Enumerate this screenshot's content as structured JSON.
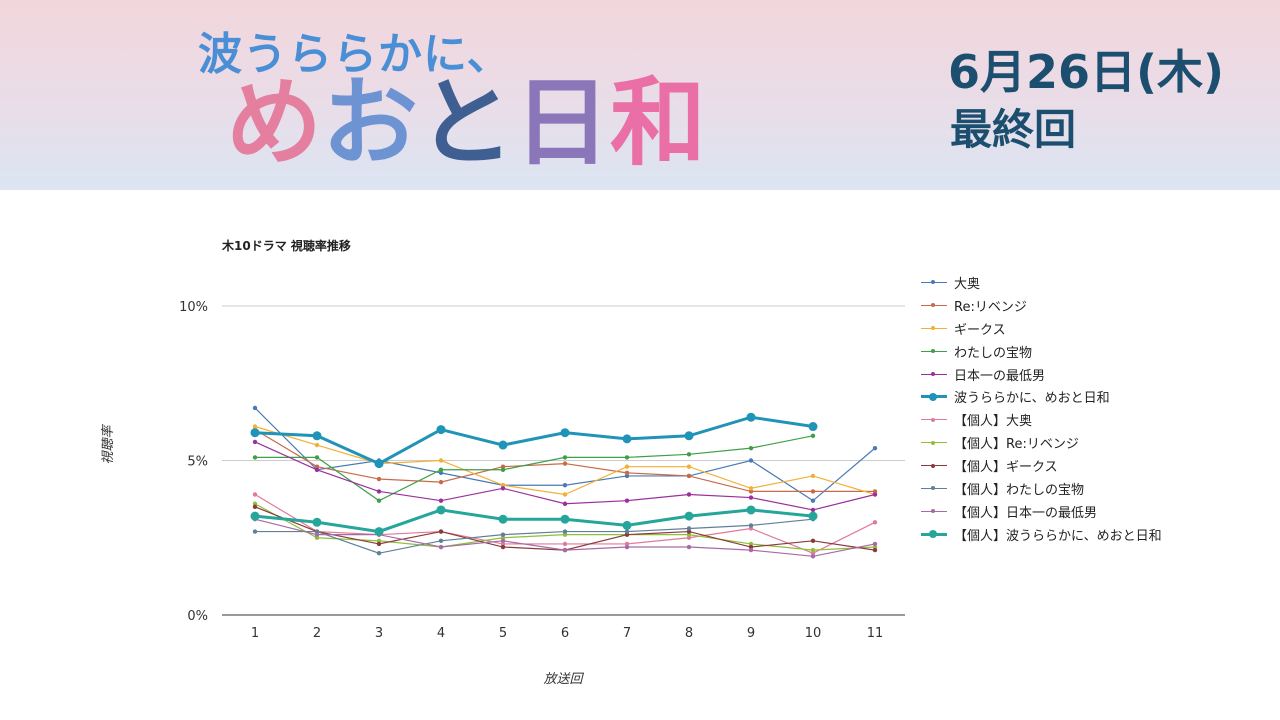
{
  "header": {
    "title_top": "波うららかに、",
    "title_main": [
      "め",
      "お",
      "と",
      "日",
      "和"
    ],
    "date": "6月26日(木)",
    "final": "最終回"
  },
  "chart_data": {
    "type": "line",
    "title": "木10ドラマ 視聴率推移",
    "xlabel": "放送回",
    "ylabel": "視聴率",
    "ylim": [
      0,
      10
    ],
    "yticks": [
      "0%",
      "5%",
      "10%"
    ],
    "x": [
      1,
      2,
      3,
      4,
      5,
      6,
      7,
      8,
      9,
      10,
      11
    ],
    "grid": true,
    "legend_position": "right",
    "series": [
      {
        "name": "大奥",
        "color": "#4a7ab5",
        "bold": false,
        "values": [
          6.7,
          4.7,
          5.0,
          4.6,
          4.2,
          4.2,
          4.5,
          4.5,
          5.0,
          3.7,
          5.4
        ]
      },
      {
        "name": "Re:リベンジ",
        "color": "#c86a4a",
        "bold": false,
        "values": [
          6.0,
          4.8,
          4.4,
          4.3,
          4.8,
          4.9,
          4.6,
          4.5,
          4.0,
          4.0,
          4.0
        ]
      },
      {
        "name": "ギークス",
        "color": "#f2b037",
        "bold": false,
        "values": [
          6.1,
          5.5,
          4.9,
          5.0,
          4.2,
          3.9,
          4.8,
          4.8,
          4.1,
          4.5,
          3.9
        ]
      },
      {
        "name": "わたしの宝物",
        "color": "#3f9f45",
        "bold": false,
        "values": [
          5.1,
          5.1,
          3.7,
          4.7,
          4.7,
          5.1,
          5.1,
          5.2,
          5.4,
          5.8,
          null
        ]
      },
      {
        "name": "日本一の最低男",
        "color": "#9b2f9e",
        "bold": false,
        "values": [
          5.6,
          4.7,
          4.0,
          3.7,
          4.1,
          3.6,
          3.7,
          3.9,
          3.8,
          3.4,
          3.9
        ]
      },
      {
        "name": "波うららかに、めおと日和",
        "color": "#1f93b8",
        "bold": true,
        "values": [
          5.9,
          5.8,
          4.9,
          6.0,
          5.5,
          5.9,
          5.7,
          5.8,
          6.4,
          6.1,
          null
        ]
      },
      {
        "name": "【個人】大奥",
        "color": "#e07a9a",
        "bold": false,
        "values": [
          3.9,
          2.7,
          2.6,
          2.7,
          2.3,
          2.3,
          2.3,
          2.5,
          2.8,
          2.0,
          3.0
        ]
      },
      {
        "name": "【個人】Re:リベンジ",
        "color": "#8fbf3a",
        "bold": false,
        "values": [
          3.6,
          2.5,
          2.4,
          2.2,
          2.5,
          2.6,
          2.6,
          2.6,
          2.3,
          2.1,
          2.2
        ]
      },
      {
        "name": "【個人】ギークス",
        "color": "#8a3a3a",
        "bold": false,
        "values": [
          3.5,
          2.7,
          2.3,
          2.7,
          2.2,
          2.1,
          2.6,
          2.7,
          2.2,
          2.4,
          2.1
        ]
      },
      {
        "name": "【個人】わたしの宝物",
        "color": "#5f7f9a",
        "bold": false,
        "values": [
          2.7,
          2.7,
          2.0,
          2.4,
          2.6,
          2.7,
          2.7,
          2.8,
          2.9,
          3.1,
          null
        ]
      },
      {
        "name": "【個人】日本一の最低男",
        "color": "#a66aa6",
        "bold": false,
        "values": [
          3.1,
          2.6,
          2.6,
          2.2,
          2.4,
          2.1,
          2.2,
          2.2,
          2.1,
          1.9,
          2.3
        ]
      },
      {
        "name": "【個人】波うららかに、めおと日和",
        "color": "#26a69a",
        "bold": true,
        "values": [
          3.2,
          3.0,
          2.7,
          3.4,
          3.1,
          3.1,
          2.9,
          3.2,
          3.4,
          3.2,
          null
        ]
      }
    ]
  }
}
